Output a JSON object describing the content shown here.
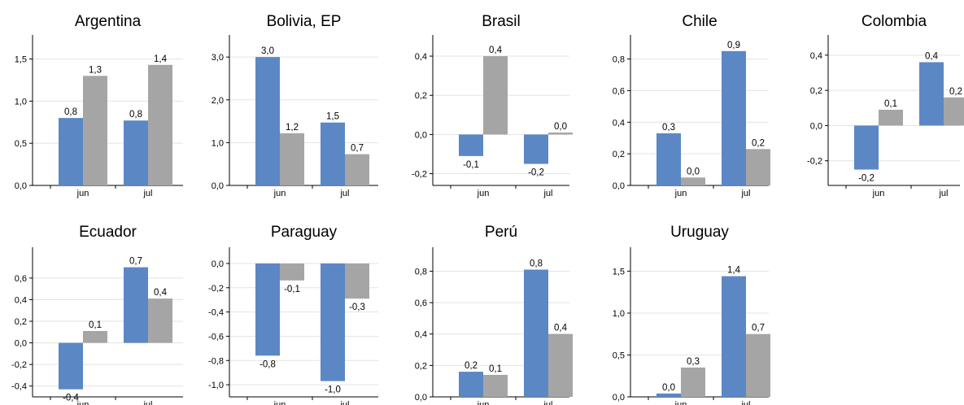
{
  "colors": {
    "series_a": "#5b87c5",
    "series_b": "#a5a5a5"
  },
  "chart_data": [
    {
      "type": "bar",
      "title": "Argentina",
      "categories": [
        "jun",
        "jul"
      ],
      "series": [
        {
          "values": [
            0.8,
            0.77
          ]
        },
        {
          "values": [
            1.3,
            1.43
          ]
        }
      ],
      "data_labels": [
        [
          "0,8",
          "0,8"
        ],
        [
          "1,3",
          "1,4"
        ]
      ],
      "yticks": [
        0.0,
        0.5,
        1.0,
        1.5
      ],
      "ytick_labels": [
        "0,0",
        "0,5",
        "1,0",
        "1,5"
      ],
      "ylim": [
        0,
        1.65
      ],
      "grid": true
    },
    {
      "type": "bar",
      "title": "Bolivia, EP",
      "categories": [
        "jun",
        "jul"
      ],
      "series": [
        {
          "values": [
            3.0,
            1.47
          ]
        },
        {
          "values": [
            1.22,
            0.73
          ]
        }
      ],
      "data_labels": [
        [
          "3,0",
          "1,5"
        ],
        [
          "1,2",
          "0,7"
        ]
      ],
      "yticks": [
        0.0,
        1.0,
        2.0,
        3.0
      ],
      "ytick_labels": [
        "0,0",
        "1,0",
        "2,0",
        "3,0"
      ],
      "ylim": [
        0,
        3.25
      ],
      "grid": true
    },
    {
      "type": "bar",
      "title": "Brasil",
      "categories": [
        "jun",
        "jul"
      ],
      "series": [
        {
          "values": [
            -0.11,
            -0.15
          ]
        },
        {
          "values": [
            0.4,
            0.01
          ]
        }
      ],
      "data_labels": [
        [
          "-0,1",
          "-0,2"
        ],
        [
          "0,4",
          "0,0"
        ]
      ],
      "yticks": [
        -0.2,
        0.0,
        0.2,
        0.4
      ],
      "ytick_labels": [
        "-0,2",
        "0,0",
        "0,2",
        "0,4"
      ],
      "ylim": [
        -0.26,
        0.45
      ],
      "grid": true
    },
    {
      "type": "bar",
      "title": "Chile",
      "categories": [
        "jun",
        "jul"
      ],
      "series": [
        {
          "values": [
            0.33,
            0.85
          ]
        },
        {
          "values": [
            0.05,
            0.23
          ]
        }
      ],
      "data_labels": [
        [
          "0,3",
          "0,9"
        ],
        [
          "0,0",
          "0,2"
        ]
      ],
      "yticks": [
        0.0,
        0.2,
        0.4,
        0.6,
        0.8
      ],
      "ytick_labels": [
        "0,0",
        "0,2",
        "0,4",
        "0,6",
        "0,8"
      ],
      "ylim": [
        0,
        0.88
      ],
      "grid": true
    },
    {
      "type": "bar",
      "title": "Colombia",
      "categories": [
        "jun",
        "jul"
      ],
      "series": [
        {
          "values": [
            -0.25,
            0.36
          ]
        },
        {
          "values": [
            0.09,
            0.16
          ]
        }
      ],
      "data_labels": [
        [
          "-0,2",
          "0,4"
        ],
        [
          "0,1",
          "0,2"
        ]
      ],
      "yticks": [
        -0.2,
        0.0,
        0.2,
        0.4
      ],
      "ytick_labels": [
        "-0,2",
        "0,0",
        "0,2",
        "0,4"
      ],
      "ylim": [
        -0.34,
        0.45
      ],
      "grid": true
    },
    {
      "type": "bar",
      "title": "Ecuador",
      "categories": [
        "jun",
        "jul"
      ],
      "series": [
        {
          "values": [
            -0.43,
            0.7
          ]
        },
        {
          "values": [
            0.11,
            0.41
          ]
        }
      ],
      "data_labels": [
        [
          "-0,4",
          "0,7"
        ],
        [
          "0,1",
          "0,4"
        ]
      ],
      "yticks": [
        -0.4,
        -0.2,
        0.0,
        0.2,
        0.4,
        0.6
      ],
      "ytick_labels": [
        "-0,4",
        "-0,2",
        "0,0",
        "0,2",
        "0,4",
        "0,6"
      ],
      "ylim": [
        -0.5,
        0.78
      ],
      "grid": true
    },
    {
      "type": "bar",
      "title": "Paraguay",
      "categories": [
        "jun",
        "jul"
      ],
      "series": [
        {
          "values": [
            -0.76,
            -0.97
          ]
        },
        {
          "values": [
            -0.14,
            -0.29
          ]
        }
      ],
      "data_labels": [
        [
          "-0,8",
          "-1,0"
        ],
        [
          "-0,1",
          "-0,3"
        ]
      ],
      "yticks": [
        -1.0,
        -0.8,
        -0.6,
        -0.4,
        -0.2,
        0.0
      ],
      "ytick_labels": [
        "-1,0",
        "-0,8",
        "-0,6",
        "-0,4",
        "-0,2",
        "0,0"
      ],
      "ylim": [
        -1.1,
        0.04
      ],
      "grid": true
    },
    {
      "type": "bar",
      "title": "Perú",
      "categories": [
        "jun",
        "jul"
      ],
      "series": [
        {
          "values": [
            0.16,
            0.81
          ]
        },
        {
          "values": [
            0.14,
            0.4
          ]
        }
      ],
      "data_labels": [
        [
          "0,2",
          "0,8"
        ],
        [
          "0,1",
          "0,4"
        ]
      ],
      "yticks": [
        0.0,
        0.2,
        0.4,
        0.6,
        0.8
      ],
      "ytick_labels": [
        "0,0",
        "0,2",
        "0,4",
        "0,6",
        "0,8"
      ],
      "ylim": [
        0,
        0.88
      ],
      "grid": true
    },
    {
      "type": "bar",
      "title": "Uruguay",
      "categories": [
        "jun",
        "jul"
      ],
      "series": [
        {
          "values": [
            0.04,
            1.44
          ]
        },
        {
          "values": [
            0.35,
            0.75
          ]
        }
      ],
      "data_labels": [
        [
          "0,0",
          "1,4"
        ],
        [
          "0,3",
          "0,7"
        ]
      ],
      "yticks": [
        0.0,
        0.5,
        1.0,
        1.5
      ],
      "ytick_labels": [
        "0,0",
        "0,5",
        "1,0",
        "1,5"
      ],
      "ylim": [
        0,
        1.65
      ],
      "grid": true
    }
  ]
}
